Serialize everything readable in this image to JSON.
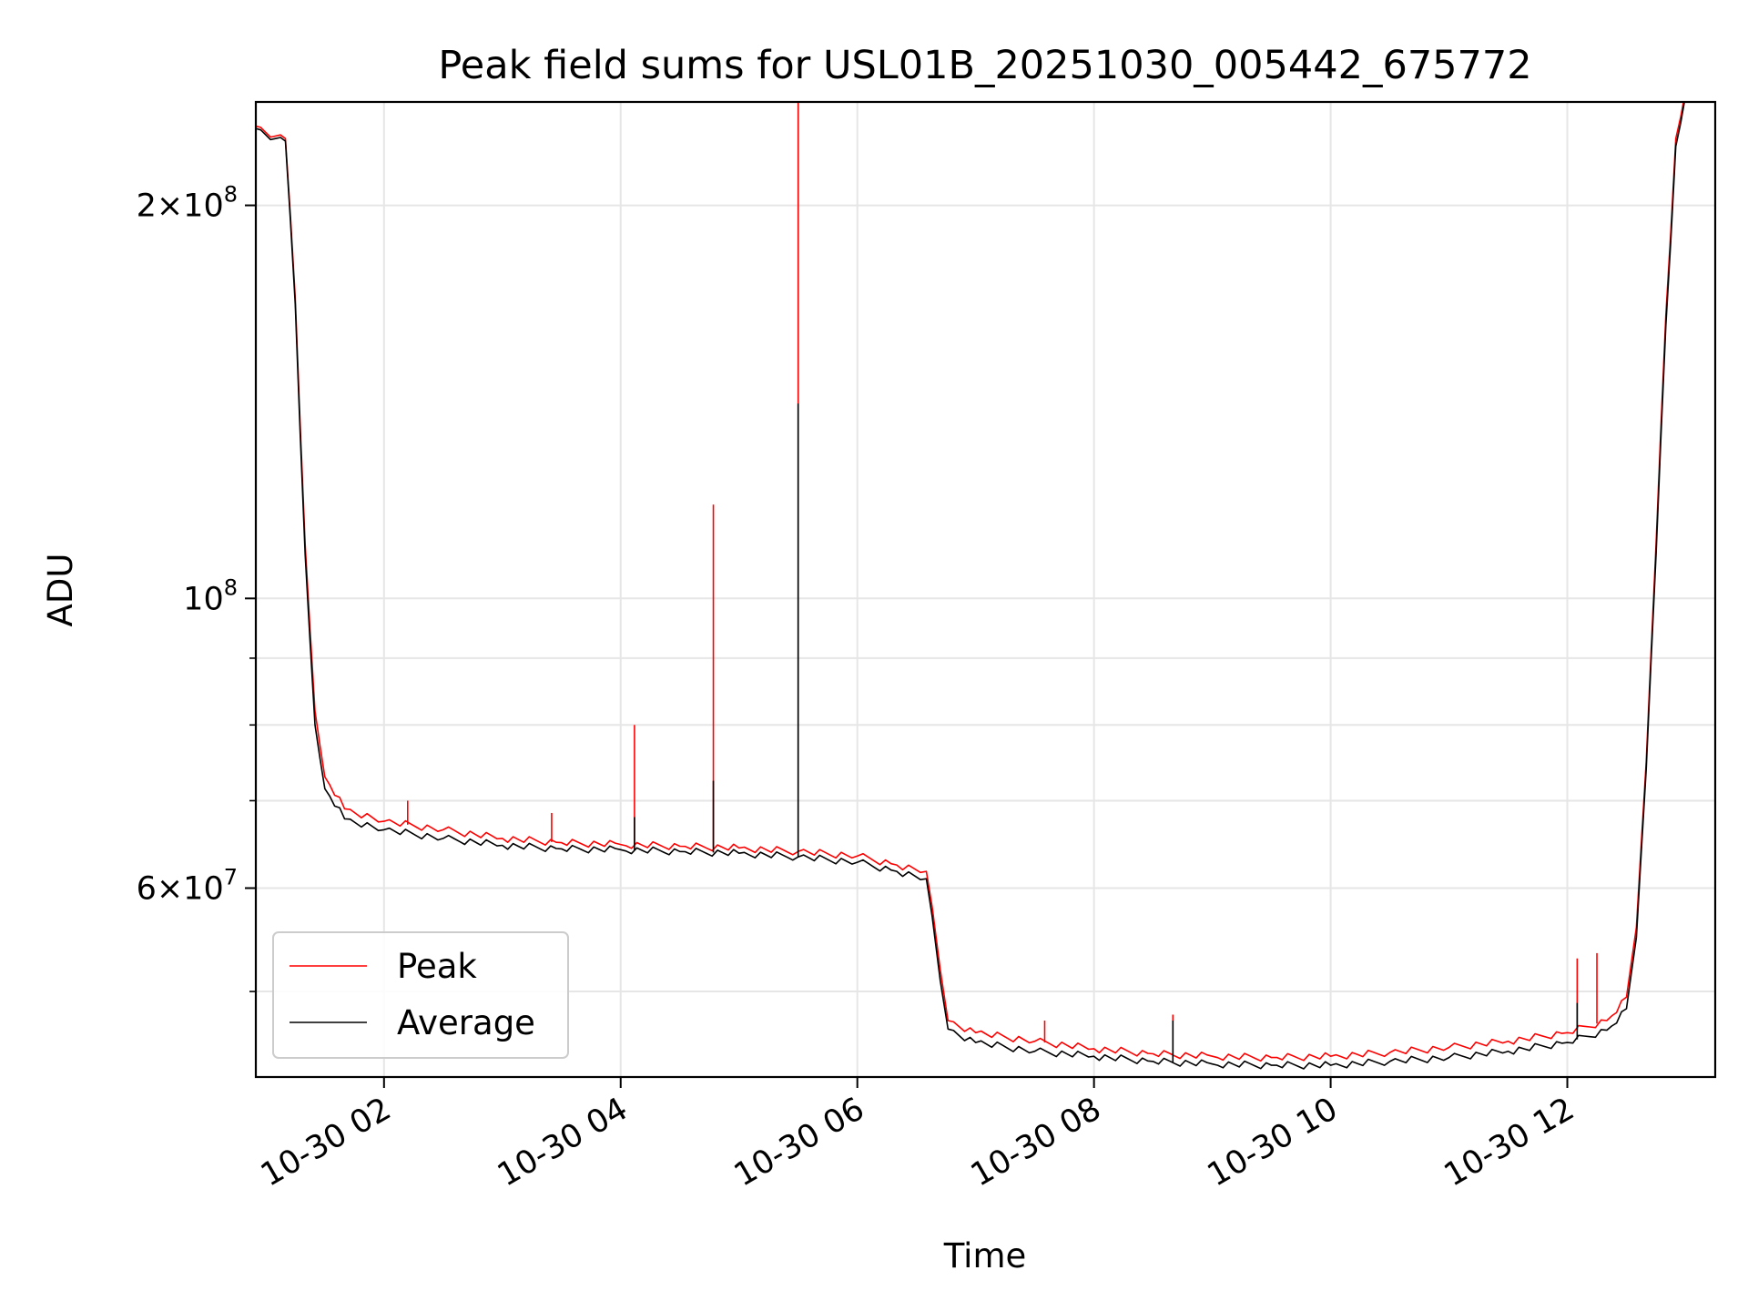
{
  "chart_data": {
    "type": "line",
    "title": "Peak field sums for USL01B_20251030_005442_675772",
    "xlabel": "Time",
    "ylabel": "ADU",
    "yscale": "log",
    "grid": true,
    "legend_position": "lower-left",
    "x_range": [
      "2025-10-30 00:55",
      "2025-10-30 13:15"
    ],
    "ylim": [
      43000000,
      240000000
    ],
    "x_ticks": [
      {
        "t": "2025-10-30 02:00",
        "label": "10-30 02"
      },
      {
        "t": "2025-10-30 04:00",
        "label": "10-30 04"
      },
      {
        "t": "2025-10-30 06:00",
        "label": "10-30 06"
      },
      {
        "t": "2025-10-30 08:00",
        "label": "10-30 08"
      },
      {
        "t": "2025-10-30 10:00",
        "label": "10-30 10"
      },
      {
        "t": "2025-10-30 12:00",
        "label": "10-30 12"
      }
    ],
    "y_major_ticks": [
      {
        "value": 100000000,
        "mantissa": "",
        "base": "10",
        "exponent": "8"
      },
      {
        "value": 60000000,
        "mantissa": "6×",
        "base": "10",
        "exponent": "7"
      },
      {
        "value": 200000000,
        "mantissa": "2×",
        "base": "10",
        "exponent": "8"
      }
    ],
    "y_minor_ticks": [
      50000000,
      70000000,
      80000000,
      90000000
    ],
    "series": [
      {
        "name": "Peak",
        "color": "#ff0000",
        "points": [
          [
            "2025-10-30 00:55",
            230000000
          ],
          [
            "2025-10-30 01:05",
            226000000
          ],
          [
            "2025-10-30 01:10",
            225000000
          ],
          [
            "2025-10-30 01:15",
            170000000
          ],
          [
            "2025-10-30 01:20",
            110000000
          ],
          [
            "2025-10-30 01:25",
            82000000
          ],
          [
            "2025-10-30 01:30",
            73000000
          ],
          [
            "2025-10-30 01:40",
            69000000
          ],
          [
            "2025-10-30 02:00",
            67500000
          ],
          [
            "2025-10-30 02:30",
            66500000
          ],
          [
            "2025-10-30 03:00",
            65500000
          ],
          [
            "2025-10-30 03:30",
            65000000
          ],
          [
            "2025-10-30 04:00",
            64800000
          ],
          [
            "2025-10-30 04:30",
            64600000
          ],
          [
            "2025-10-30 05:00",
            64400000
          ],
          [
            "2025-10-30 05:30",
            64000000
          ],
          [
            "2025-10-30 06:00",
            63500000
          ],
          [
            "2025-10-30 06:20",
            62500000
          ],
          [
            "2025-10-30 06:35",
            61800000
          ],
          [
            "2025-10-30 06:38",
            58000000
          ],
          [
            "2025-10-30 06:42",
            52000000
          ],
          [
            "2025-10-30 06:46",
            47500000
          ],
          [
            "2025-10-30 07:00",
            46500000
          ],
          [
            "2025-10-30 07:30",
            45800000
          ],
          [
            "2025-10-30 08:00",
            45200000
          ],
          [
            "2025-10-30 08:30",
            44800000
          ],
          [
            "2025-10-30 09:00",
            44600000
          ],
          [
            "2025-10-30 09:30",
            44500000
          ],
          [
            "2025-10-30 10:00",
            44600000
          ],
          [
            "2025-10-30 10:30",
            44900000
          ],
          [
            "2025-10-30 11:00",
            45300000
          ],
          [
            "2025-10-30 11:30",
            45800000
          ],
          [
            "2025-10-30 12:00",
            46500000
          ],
          [
            "2025-10-30 12:20",
            47500000
          ],
          [
            "2025-10-30 12:30",
            49500000
          ],
          [
            "2025-10-30 12:35",
            56000000
          ],
          [
            "2025-10-30 12:40",
            75000000
          ],
          [
            "2025-10-30 12:45",
            110000000
          ],
          [
            "2025-10-30 12:50",
            165000000
          ],
          [
            "2025-10-30 12:55",
            225000000
          ],
          [
            "2025-10-30 13:00",
            245000000
          ]
        ],
        "spikes": [
          [
            "2025-10-30 02:12",
            70000000
          ],
          [
            "2025-10-30 03:25",
            68500000
          ],
          [
            "2025-10-30 04:07",
            80000000
          ],
          [
            "2025-10-30 04:47",
            118000000
          ],
          [
            "2025-10-30 05:30",
            245000000
          ],
          [
            "2025-10-30 07:35",
            47500000
          ],
          [
            "2025-10-30 08:40",
            48000000
          ],
          [
            "2025-10-30 12:05",
            53000000
          ],
          [
            "2025-10-30 12:15",
            53500000
          ]
        ]
      },
      {
        "name": "Average",
        "color": "#000000",
        "points": [
          [
            "2025-10-30 00:55",
            229000000
          ],
          [
            "2025-10-30 01:05",
            225000000
          ],
          [
            "2025-10-30 01:10",
            224000000
          ],
          [
            "2025-10-30 01:15",
            168000000
          ],
          [
            "2025-10-30 01:20",
            108000000
          ],
          [
            "2025-10-30 01:25",
            80000000
          ],
          [
            "2025-10-30 01:30",
            71500000
          ],
          [
            "2025-10-30 01:40",
            67800000
          ],
          [
            "2025-10-30 02:00",
            66500000
          ],
          [
            "2025-10-30 02:30",
            65500000
          ],
          [
            "2025-10-30 03:00",
            64700000
          ],
          [
            "2025-10-30 03:30",
            64300000
          ],
          [
            "2025-10-30 04:00",
            64200000
          ],
          [
            "2025-10-30 04:30",
            64000000
          ],
          [
            "2025-10-30 05:00",
            63800000
          ],
          [
            "2025-10-30 05:30",
            63400000
          ],
          [
            "2025-10-30 06:00",
            62800000
          ],
          [
            "2025-10-30 06:20",
            61800000
          ],
          [
            "2025-10-30 06:35",
            61000000
          ],
          [
            "2025-10-30 06:38",
            57000000
          ],
          [
            "2025-10-30 06:42",
            51000000
          ],
          [
            "2025-10-30 06:46",
            46800000
          ],
          [
            "2025-10-30 07:00",
            45700000
          ],
          [
            "2025-10-30 07:30",
            45000000
          ],
          [
            "2025-10-30 08:00",
            44600000
          ],
          [
            "2025-10-30 08:30",
            44200000
          ],
          [
            "2025-10-30 09:00",
            44000000
          ],
          [
            "2025-10-30 09:30",
            43900000
          ],
          [
            "2025-10-30 10:00",
            43900000
          ],
          [
            "2025-10-30 10:30",
            44200000
          ],
          [
            "2025-10-30 11:00",
            44500000
          ],
          [
            "2025-10-30 11:30",
            45000000
          ],
          [
            "2025-10-30 12:00",
            45700000
          ],
          [
            "2025-10-30 12:20",
            46700000
          ],
          [
            "2025-10-30 12:30",
            48500000
          ],
          [
            "2025-10-30 12:35",
            55000000
          ],
          [
            "2025-10-30 12:40",
            74000000
          ],
          [
            "2025-10-30 12:45",
            108000000
          ],
          [
            "2025-10-30 12:50",
            162000000
          ],
          [
            "2025-10-30 12:55",
            222000000
          ],
          [
            "2025-10-30 13:00",
            243000000
          ]
        ],
        "spikes": [
          [
            "2025-10-30 04:07",
            68000000
          ],
          [
            "2025-10-30 04:47",
            72500000
          ],
          [
            "2025-10-30 05:30",
            141000000
          ],
          [
            "2025-10-30 08:40",
            47500000
          ],
          [
            "2025-10-30 12:05",
            49000000
          ]
        ]
      }
    ]
  }
}
